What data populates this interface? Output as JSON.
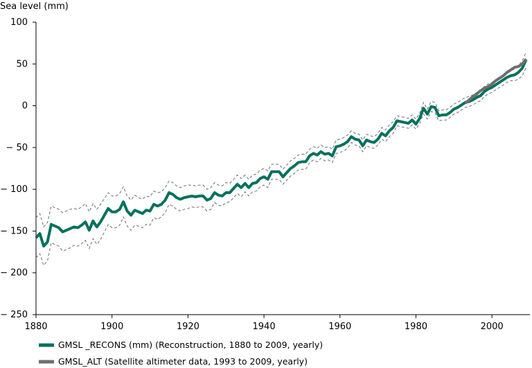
{
  "chart_data": {
    "type": "line",
    "ylabel": "Sea level (mm)",
    "xlabel": "",
    "xlim": [
      1880,
      2010
    ],
    "ylim": [
      -250,
      100
    ],
    "x_ticks": [
      1880,
      1900,
      1920,
      1940,
      1960,
      1980,
      2000
    ],
    "y_ticks": [
      100,
      50,
      0,
      -50,
      -100,
      -150,
      -200,
      -250
    ],
    "legend_position": "bottom-left",
    "grid": false,
    "colors": {
      "recons": "#00715c",
      "alt": "#6e6e6e",
      "uncertainty": "#6e6e6e"
    },
    "series": [
      {
        "name": "GMSL _RECONS (mm) (Reconstruction, 1880 to 2009, yearly)",
        "kind": "main",
        "x": [
          1880,
          1881,
          1882,
          1883,
          1884,
          1885,
          1886,
          1887,
          1888,
          1889,
          1890,
          1891,
          1892,
          1893,
          1894,
          1895,
          1896,
          1897,
          1898,
          1899,
          1900,
          1901,
          1902,
          1903,
          1904,
          1905,
          1906,
          1907,
          1908,
          1909,
          1910,
          1911,
          1912,
          1913,
          1914,
          1915,
          1916,
          1917,
          1918,
          1919,
          1920,
          1921,
          1922,
          1923,
          1924,
          1925,
          1926,
          1927,
          1928,
          1929,
          1930,
          1931,
          1932,
          1933,
          1934,
          1935,
          1936,
          1937,
          1938,
          1939,
          1940,
          1941,
          1942,
          1943,
          1944,
          1945,
          1946,
          1947,
          1948,
          1949,
          1950,
          1951,
          1952,
          1953,
          1954,
          1955,
          1956,
          1957,
          1958,
          1959,
          1960,
          1961,
          1962,
          1963,
          1964,
          1965,
          1966,
          1967,
          1968,
          1969,
          1970,
          1971,
          1972,
          1973,
          1974,
          1975,
          1976,
          1977,
          1978,
          1979,
          1980,
          1981,
          1982,
          1983,
          1984,
          1985,
          1986,
          1987,
          1988,
          1989,
          1990,
          1991,
          1992,
          1993,
          1994,
          1995,
          1996,
          1997,
          1998,
          1999,
          2000,
          2001,
          2002,
          2003,
          2004,
          2005,
          2006,
          2007,
          2008,
          2009
        ],
        "y": [
          -158,
          -153,
          -168,
          -163,
          -142,
          -144,
          -146,
          -151,
          -149,
          -147,
          -145,
          -146,
          -143,
          -139,
          -149,
          -138,
          -145,
          -139,
          -131,
          -123,
          -127,
          -127,
          -124,
          -115,
          -126,
          -131,
          -125,
          -127,
          -129,
          -125,
          -126,
          -118,
          -120,
          -118,
          -113,
          -104,
          -106,
          -110,
          -112,
          -110,
          -109,
          -108,
          -109,
          -108,
          -108,
          -113,
          -111,
          -104,
          -107,
          -108,
          -104,
          -104,
          -99,
          -94,
          -98,
          -93,
          -98,
          -93,
          -92,
          -87,
          -85,
          -88,
          -79,
          -79,
          -79,
          -85,
          -80,
          -75,
          -72,
          -68,
          -67,
          -67,
          -60,
          -57,
          -59,
          -55,
          -58,
          -57,
          -60,
          -49,
          -48,
          -46,
          -43,
          -37,
          -40,
          -41,
          -48,
          -41,
          -43,
          -44,
          -40,
          -33,
          -36,
          -30,
          -26,
          -18,
          -19,
          -20,
          -21,
          -17,
          -22,
          -15,
          -3,
          -10,
          -1,
          -2,
          -12,
          -11,
          -11,
          -8,
          -4,
          -2,
          1,
          4,
          5,
          7,
          10,
          12,
          17,
          20,
          22,
          25,
          28,
          31,
          34,
          36,
          37,
          40,
          45,
          55
        ]
      },
      {
        "name": "GMSL_ALT (Satellite altimeter data, 1993 to 2009, yearly)",
        "kind": "main",
        "x": [
          1993,
          1994,
          1995,
          1996,
          1997,
          1998,
          1999,
          2000,
          2001,
          2002,
          2003,
          2004,
          2005,
          2006,
          2007,
          2008,
          2009
        ],
        "y": [
          3,
          7,
          11,
          14,
          18,
          21,
          23,
          26,
          30,
          33,
          36,
          40,
          43,
          46,
          47,
          50,
          56
        ]
      },
      {
        "kind": "upper_bound",
        "x": [
          1880,
          1881,
          1882,
          1883,
          1884,
          1885,
          1886,
          1887,
          1888,
          1889,
          1890,
          1891,
          1892,
          1893,
          1894,
          1895,
          1896,
          1897,
          1898,
          1899,
          1900,
          1901,
          1902,
          1903,
          1904,
          1905,
          1906,
          1907,
          1908,
          1909,
          1910,
          1911,
          1912,
          1913,
          1914,
          1915,
          1916,
          1917,
          1918,
          1919,
          1920,
          1921,
          1922,
          1923,
          1924,
          1925,
          1926,
          1927,
          1928,
          1929,
          1930,
          1931,
          1932,
          1933,
          1934,
          1935,
          1936,
          1937,
          1938,
          1939,
          1940,
          1941,
          1942,
          1943,
          1944,
          1945,
          1946,
          1947,
          1948,
          1949,
          1950,
          1951,
          1952,
          1953,
          1954,
          1955,
          1956,
          1957,
          1958,
          1959,
          1960,
          1961,
          1962,
          1963,
          1964,
          1965,
          1966,
          1967,
          1968,
          1969,
          1970,
          1971,
          1972,
          1973,
          1974,
          1975,
          1976,
          1977,
          1978,
          1979,
          1980,
          1981,
          1982,
          1983,
          1984,
          1985,
          1986,
          1987,
          1988,
          1989,
          1990,
          1991,
          1992,
          1993,
          1994,
          1995,
          1996,
          1997,
          1998,
          1999,
          2000,
          2001,
          2002,
          2003,
          2004,
          2005,
          2006,
          2007,
          2008,
          2009
        ],
        "y": [
          -134,
          -129,
          -145,
          -140,
          -120,
          -122,
          -124,
          -128,
          -126,
          -124,
          -123,
          -124,
          -121,
          -117,
          -127,
          -117,
          -124,
          -118,
          -111,
          -104,
          -108,
          -108,
          -105,
          -97,
          -108,
          -113,
          -107,
          -110,
          -112,
          -108,
          -109,
          -102,
          -104,
          -103,
          -98,
          -90,
          -92,
          -96,
          -98,
          -96,
          -95,
          -95,
          -96,
          -95,
          -95,
          -100,
          -98,
          -92,
          -95,
          -96,
          -92,
          -93,
          -88,
          -83,
          -87,
          -83,
          -88,
          -83,
          -82,
          -77,
          -75,
          -78,
          -70,
          -70,
          -70,
          -76,
          -71,
          -66,
          -63,
          -59,
          -58,
          -58,
          -52,
          -49,
          -51,
          -47,
          -50,
          -49,
          -52,
          -41,
          -40,
          -38,
          -35,
          -30,
          -33,
          -34,
          -41,
          -34,
          -36,
          -37,
          -33,
          -26,
          -29,
          -23,
          -19,
          -12,
          -13,
          -14,
          -15,
          -11,
          -16,
          -9,
          4,
          -4,
          5,
          4,
          -6,
          -5,
          -5,
          -2,
          2,
          4,
          7,
          10,
          11,
          13,
          16,
          18,
          23,
          26,
          28,
          31,
          34,
          37,
          40,
          42,
          44,
          48,
          54,
          64
        ]
      },
      {
        "kind": "lower_bound",
        "x": [
          1880,
          1881,
          1882,
          1883,
          1884,
          1885,
          1886,
          1887,
          1888,
          1889,
          1890,
          1891,
          1892,
          1893,
          1894,
          1895,
          1896,
          1897,
          1898,
          1899,
          1900,
          1901,
          1902,
          1903,
          1904,
          1905,
          1906,
          1907,
          1908,
          1909,
          1910,
          1911,
          1912,
          1913,
          1914,
          1915,
          1916,
          1917,
          1918,
          1919,
          1920,
          1921,
          1922,
          1923,
          1924,
          1925,
          1926,
          1927,
          1928,
          1929,
          1930,
          1931,
          1932,
          1933,
          1934,
          1935,
          1936,
          1937,
          1938,
          1939,
          1940,
          1941,
          1942,
          1943,
          1944,
          1945,
          1946,
          1947,
          1948,
          1949,
          1950,
          1951,
          1952,
          1953,
          1954,
          1955,
          1956,
          1957,
          1958,
          1959,
          1960,
          1961,
          1962,
          1963,
          1964,
          1965,
          1966,
          1967,
          1968,
          1969,
          1970,
          1971,
          1972,
          1973,
          1974,
          1975,
          1976,
          1977,
          1978,
          1979,
          1980,
          1981,
          1982,
          1983,
          1984,
          1985,
          1986,
          1987,
          1988,
          1989,
          1990,
          1991,
          1992,
          1993,
          1994,
          1995,
          1996,
          1997,
          1998,
          1999,
          2000,
          2001,
          2002,
          2003,
          2004,
          2005,
          2006,
          2007,
          2008,
          2009
        ],
        "y": [
          -182,
          -177,
          -191,
          -186,
          -164,
          -166,
          -168,
          -174,
          -172,
          -170,
          -167,
          -168,
          -165,
          -161,
          -171,
          -159,
          -166,
          -160,
          -151,
          -142,
          -146,
          -146,
          -143,
          -133,
          -144,
          -149,
          -143,
          -144,
          -146,
          -142,
          -143,
          -134,
          -136,
          -133,
          -128,
          -118,
          -120,
          -124,
          -126,
          -124,
          -123,
          -121,
          -122,
          -121,
          -121,
          -126,
          -124,
          -116,
          -119,
          -120,
          -116,
          -115,
          -110,
          -105,
          -109,
          -103,
          -108,
          -103,
          -102,
          -97,
          -95,
          -98,
          -88,
          -88,
          -88,
          -94,
          -89,
          -84,
          -81,
          -77,
          -76,
          -76,
          -68,
          -65,
          -67,
          -63,
          -66,
          -65,
          -68,
          -57,
          -56,
          -54,
          -51,
          -44,
          -47,
          -48,
          -55,
          -48,
          -50,
          -51,
          -47,
          -40,
          -43,
          -37,
          -33,
          -24,
          -25,
          -26,
          -27,
          -23,
          -28,
          -21,
          -10,
          -16,
          -7,
          -8,
          -18,
          -17,
          -17,
          -14,
          -10,
          -8,
          -5,
          -2,
          -1,
          1,
          4,
          6,
          11,
          14,
          16,
          19,
          22,
          25,
          28,
          30,
          30,
          32,
          36,
          46
        ]
      }
    ]
  }
}
